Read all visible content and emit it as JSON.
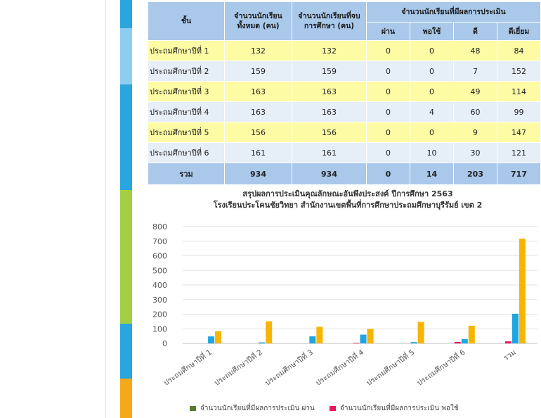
{
  "table": {
    "headers": {
      "grade": "ชั้น",
      "total_students": "จำนวนนักเรียนทั้งหมด (คน)",
      "graduated": "จำนวนนักเรียนที่จบการศึกษา (คน)",
      "assessed": "จำนวนนักเรียนที่มีผลการประเมิน",
      "pass": "ผ่าน",
      "fair": "พอใช้",
      "good": "ดี",
      "excellent": "ดีเยี่ยม"
    },
    "rows": [
      {
        "grade": "ประถมศึกษาปีที่ 1",
        "total": "132",
        "graduated": "132",
        "pass": "0",
        "fair": "0",
        "good": "48",
        "excellent": "84"
      },
      {
        "grade": "ประถมศึกษาปีที่ 2",
        "total": "159",
        "graduated": "159",
        "pass": "0",
        "fair": "0",
        "good": "7",
        "excellent": "152"
      },
      {
        "grade": "ประถมศึกษาปีที่ 3",
        "total": "163",
        "graduated": "163",
        "pass": "0",
        "fair": "0",
        "good": "49",
        "excellent": "114"
      },
      {
        "grade": "ประถมศึกษาปีที่ 4",
        "total": "163",
        "graduated": "163",
        "pass": "0",
        "fair": "4",
        "good": "60",
        "excellent": "99"
      },
      {
        "grade": "ประถมศึกษาปีที่ 5",
        "total": "156",
        "graduated": "156",
        "pass": "0",
        "fair": "0",
        "good": "9",
        "excellent": "147"
      },
      {
        "grade": "ประถมศึกษาปีที่ 6",
        "total": "161",
        "graduated": "161",
        "pass": "0",
        "fair": "10",
        "good": "30",
        "excellent": "121"
      }
    ],
    "total_row": {
      "grade": "รวม",
      "total": "934",
      "graduated": "934",
      "pass": "0",
      "fair": "14",
      "good": "203",
      "excellent": "717"
    }
  },
  "colors": {
    "pass": "#5b7a2e",
    "fair": "#e8175d",
    "good": "#1fa6e0",
    "excellent": "#f7b500",
    "side_strip": [
      "#2aa5dd",
      "#8ecdf0",
      "#2aa5dd",
      "#a3cd45",
      "#2aa5dd",
      "#f5a81c"
    ]
  },
  "chart_data": {
    "type": "bar",
    "title": "สรุปผลการประเมินคุณลักษณะอันพึงประสงค์ ปีการศึกษา 2563",
    "subtitle": "โรงเรียนประโคนชัยวิทยา สำนักงานเขตพื้นที่การศึกษาประถมศึกษาบุรีรัมย์ เขต 2",
    "categories": [
      "ประถมศึกษาปีที่ 1",
      "ประถมศึกษาปีที่ 2",
      "ประถมศึกษาปีที่ 3",
      "ประถมศึกษาปีที่ 4",
      "ประถมศึกษาปีที่ 5",
      "ประถมศึกษาปีที่ 6",
      "รวม"
    ],
    "series": [
      {
        "name": "จำนวนนักเรียนที่มีผลการประเมิน ผ่าน",
        "values": [
          0,
          0,
          0,
          0,
          0,
          0,
          0
        ]
      },
      {
        "name": "จำนวนนักเรียนที่มีผลการประเมิน พอใช้",
        "values": [
          0,
          0,
          0,
          4,
          0,
          10,
          14
        ]
      },
      {
        "values": [
          48,
          7,
          49,
          60,
          9,
          30,
          203
        ]
      },
      {
        "values": [
          84,
          152,
          114,
          99,
          147,
          121,
          717
        ]
      }
    ],
    "ylim": [
      0,
      800
    ],
    "yticks": [
      0,
      100,
      200,
      300,
      400,
      500,
      600,
      700,
      800
    ],
    "grid": true,
    "legend": "bottom"
  }
}
